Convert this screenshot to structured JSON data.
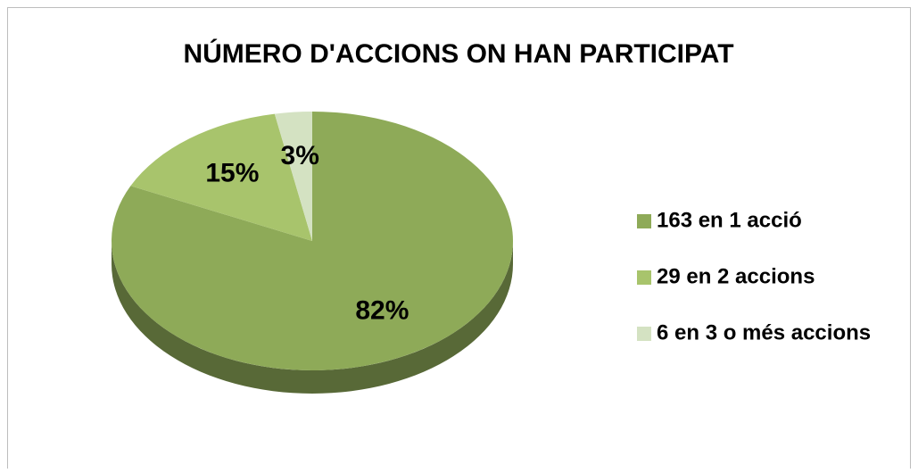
{
  "chart_data": {
    "type": "pie",
    "title": "NÚMERO D'ACCIONS ON HAN PARTICIPAT",
    "categories": [
      "163 en 1 acció",
      "29 en 2 accions",
      "6 en 3 o més accions"
    ],
    "values": [
      82,
      15,
      3
    ],
    "value_labels": [
      "82%",
      "15%",
      "3%"
    ],
    "colors": [
      "#8eaa58",
      "#a8c46c",
      "#d4e2c2"
    ],
    "legend": "right"
  }
}
